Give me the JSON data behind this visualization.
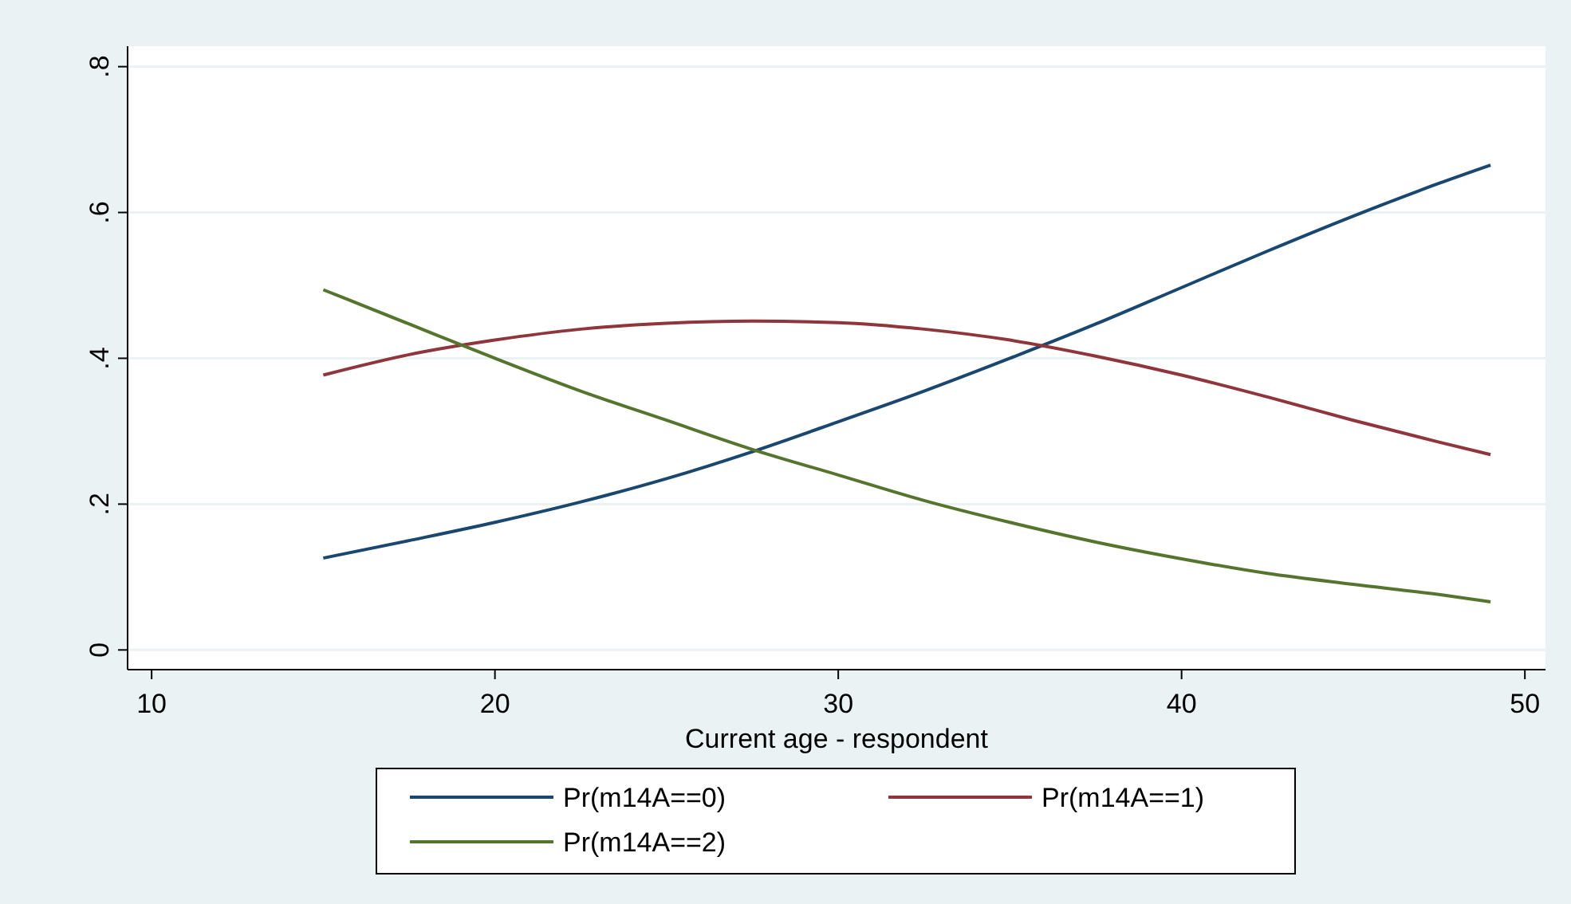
{
  "chart_data": {
    "type": "line",
    "xlabel": "Current age - respondent",
    "x": [
      15,
      17.5,
      20,
      22.5,
      25,
      27.5,
      30,
      32.5,
      35,
      37.5,
      40,
      42.5,
      45,
      47.5,
      49
    ],
    "xlim": [
      9.3,
      50.6
    ],
    "xticks": [
      10,
      20,
      30,
      40,
      50
    ],
    "ylim": [
      -0.027,
      0.828
    ],
    "yticks": [
      {
        "value": 0,
        "label": "0"
      },
      {
        "value": 0.2,
        "label": ".2"
      },
      {
        "value": 0.4,
        "label": ".4"
      },
      {
        "value": 0.6,
        "label": ".6"
      },
      {
        "value": 0.8,
        "label": ".8"
      }
    ],
    "grid": "y",
    "legend": "bottom",
    "marker": "none",
    "line_style": "solid",
    "series": [
      {
        "name": "Pr(m14A==0)",
        "color": "#1a476f",
        "values": [
          0.126,
          0.15,
          0.175,
          0.203,
          0.235,
          0.272,
          0.313,
          0.355,
          0.4,
          0.447,
          0.497,
          0.547,
          0.595,
          0.64,
          0.665
        ]
      },
      {
        "name": "Pr(m14A==1)",
        "color": "#90353b",
        "values": [
          0.377,
          0.405,
          0.425,
          0.44,
          0.448,
          0.451,
          0.449,
          0.44,
          0.425,
          0.403,
          0.377,
          0.347,
          0.315,
          0.285,
          0.268
        ]
      },
      {
        "name": "Pr(m14A==2)",
        "color": "#55752f",
        "values": [
          0.494,
          0.447,
          0.4,
          0.355,
          0.315,
          0.275,
          0.24,
          0.205,
          0.175,
          0.148,
          0.125,
          0.105,
          0.09,
          0.076,
          0.066
        ]
      }
    ]
  }
}
